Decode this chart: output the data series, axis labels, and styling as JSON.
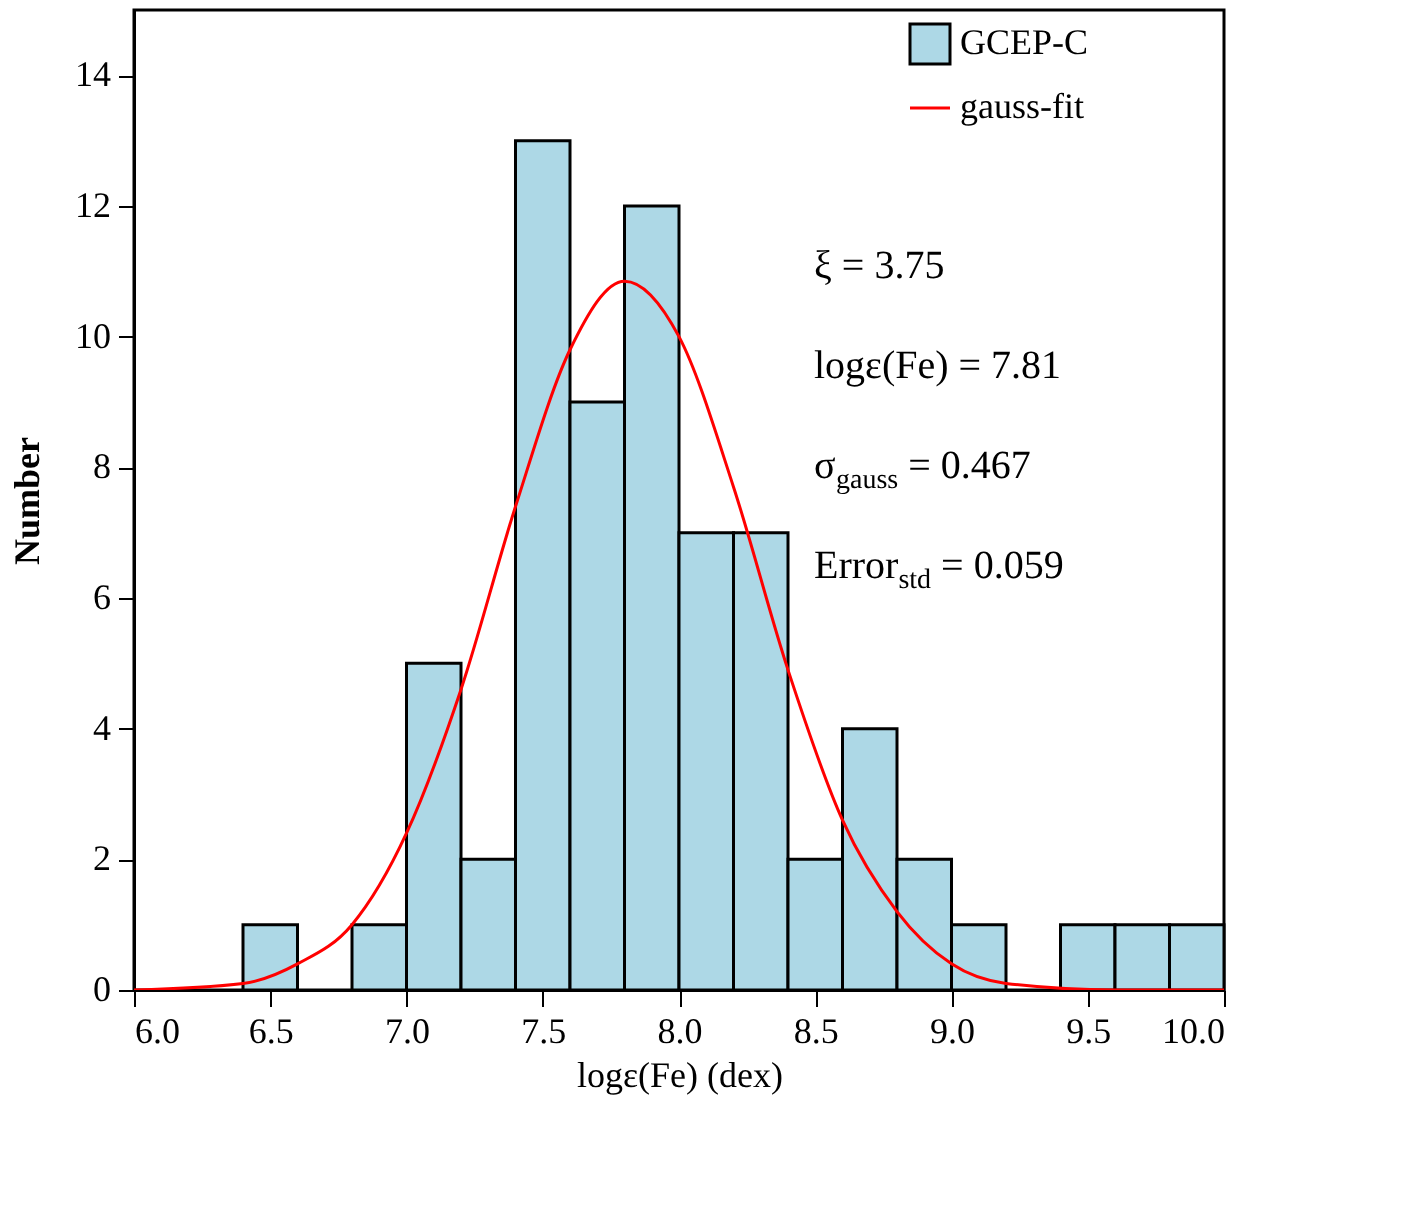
{
  "chart_data": {
    "type": "histogram",
    "xlabel": "logε(Fe) (dex)",
    "ylabel": "Number",
    "bins": [
      6.0,
      6.2,
      6.4,
      6.6,
      6.8,
      7.0,
      7.2,
      7.4,
      7.6,
      7.8,
      8.0,
      8.2,
      8.4,
      8.6,
      8.8,
      9.0,
      9.2,
      9.4,
      9.6,
      9.8,
      10.0
    ],
    "series": [
      {
        "name": "GCEP-C",
        "color": "#add8e6",
        "values": [
          0,
          0,
          1,
          0,
          1,
          5,
          2,
          13,
          9,
          12,
          7,
          7,
          2,
          4,
          2,
          1,
          0,
          1,
          1,
          1
        ]
      },
      {
        "name": "gauss-fit",
        "type": "line",
        "color": "#ff0000",
        "x": [
          6.0,
          6.4,
          6.6,
          6.8,
          7.0,
          7.2,
          7.4,
          7.6,
          7.8,
          8.0,
          8.2,
          8.4,
          8.6,
          8.8,
          9.0,
          9.2,
          9.6,
          10.0
        ],
        "values": [
          0.0,
          0.1,
          0.4,
          1.0,
          2.4,
          4.6,
          7.4,
          9.8,
          10.85,
          10.0,
          7.7,
          4.9,
          2.6,
          1.2,
          0.4,
          0.1,
          0.0,
          0.0
        ]
      }
    ],
    "xlim": [
      6.0,
      10.0
    ],
    "xticks": [
      {
        "value": 6,
        "label": "6.0"
      },
      6.5,
      {
        "value": 7,
        "label": "7.0"
      },
      7.5,
      {
        "value": 8,
        "label": "8.0"
      },
      8.5,
      {
        "value": 9,
        "label": "9.0"
      },
      9.5,
      {
        "value": 10,
        "label": "10.0"
      }
    ],
    "ylim": [
      0,
      15
    ],
    "yticks": [
      0,
      2,
      4,
      6,
      8,
      10,
      12,
      14
    ],
    "legend": "top right",
    "grid": false,
    "annotations": [
      "ξ = 3.75",
      "logε(Fe) = 7.81",
      "σ$_{gauss}$ = 0.467",
      "Error$_{std}$ = 0.059"
    ]
  }
}
